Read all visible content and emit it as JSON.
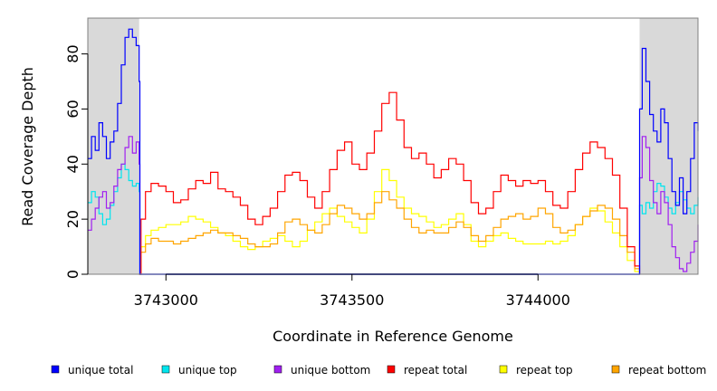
{
  "chart_data": {
    "type": "line",
    "title": "",
    "xlabel": "Coordinate in Reference Genome",
    "ylabel": "Read Coverage Depth",
    "xlim": [
      3742790,
      3744430
    ],
    "ylim": [
      0,
      93
    ],
    "xticks": [
      3743000,
      3743500,
      3744000
    ],
    "yticks": [
      0,
      20,
      40,
      60,
      80
    ],
    "shaded_regions": [
      [
        3742790,
        3742928
      ],
      [
        3744273,
        3744430
      ]
    ],
    "series": [
      {
        "name": "unique total",
        "color": "#0000ff",
        "x": [
          3742790,
          3742800,
          3742810,
          3742820,
          3742830,
          3742840,
          3742850,
          3742860,
          3742870,
          3742880,
          3742890,
          3742900,
          3742910,
          3742920,
          3742928,
          3742930,
          3744270,
          3744273,
          3744280,
          3744290,
          3744300,
          3744310,
          3744320,
          3744330,
          3744340,
          3744350,
          3744360,
          3744370,
          3744380,
          3744390,
          3744400,
          3744410,
          3744420,
          3744430
        ],
        "y": [
          42,
          50,
          45,
          55,
          50,
          42,
          48,
          52,
          62,
          76,
          86,
          89,
          86,
          83,
          70,
          0,
          0,
          60,
          82,
          70,
          58,
          52,
          48,
          60,
          55,
          42,
          30,
          25,
          35,
          22,
          30,
          42,
          55,
          52
        ]
      },
      {
        "name": "unique top",
        "color": "#00e5ee",
        "x": [
          3742790,
          3742800,
          3742810,
          3742820,
          3742830,
          3742840,
          3742850,
          3742860,
          3742870,
          3742880,
          3742890,
          3742900,
          3742910,
          3742920,
          3742928,
          3742930,
          3744270,
          3744273,
          3744280,
          3744290,
          3744300,
          3744310,
          3744320,
          3744330,
          3744340,
          3744350,
          3744360,
          3744370,
          3744380,
          3744390,
          3744400,
          3744410,
          3744420,
          3744430
        ],
        "y": [
          26,
          30,
          28,
          22,
          18,
          20,
          25,
          30,
          35,
          40,
          38,
          34,
          32,
          33,
          30,
          0,
          0,
          25,
          22,
          26,
          24,
          30,
          33,
          32,
          28,
          24,
          22,
          26,
          30,
          27,
          24,
          22,
          25,
          28
        ]
      },
      {
        "name": "unique bottom",
        "color": "#a020f0",
        "x": [
          3742790,
          3742800,
          3742810,
          3742820,
          3742830,
          3742840,
          3742850,
          3742860,
          3742870,
          3742880,
          3742890,
          3742900,
          3742910,
          3742920,
          3742928,
          3742930,
          3744270,
          3744273,
          3744280,
          3744290,
          3744300,
          3744310,
          3744320,
          3744330,
          3744340,
          3744350,
          3744360,
          3744370,
          3744380,
          3744390,
          3744400,
          3744410,
          3744420,
          3744430
        ],
        "y": [
          16,
          20,
          24,
          28,
          30,
          24,
          26,
          32,
          38,
          40,
          46,
          50,
          44,
          48,
          40,
          0,
          0,
          35,
          50,
          46,
          34,
          26,
          22,
          30,
          26,
          18,
          10,
          6,
          2,
          1,
          4,
          8,
          12,
          18
        ]
      },
      {
        "name": "repeat total",
        "color": "#ff0000",
        "x": [
          3742928,
          3742933,
          3742945,
          3742960,
          3742980,
          3743000,
          3743020,
          3743040,
          3743060,
          3743080,
          3743100,
          3743120,
          3743140,
          3743160,
          3743180,
          3743200,
          3743220,
          3743240,
          3743260,
          3743280,
          3743300,
          3743320,
          3743340,
          3743360,
          3743380,
          3743400,
          3743420,
          3743440,
          3743460,
          3743480,
          3743500,
          3743520,
          3743540,
          3743560,
          3743580,
          3743600,
          3743620,
          3743640,
          3743660,
          3743680,
          3743700,
          3743720,
          3743740,
          3743760,
          3743780,
          3743800,
          3743820,
          3743840,
          3743860,
          3743880,
          3743900,
          3743920,
          3743940,
          3743960,
          3743980,
          3744000,
          3744020,
          3744040,
          3744060,
          3744080,
          3744100,
          3744120,
          3744140,
          3744160,
          3744180,
          3744200,
          3744220,
          3744240,
          3744260,
          3744273
        ],
        "y": [
          0,
          20,
          30,
          33,
          32,
          30,
          26,
          27,
          31,
          34,
          33,
          37,
          31,
          30,
          28,
          25,
          20,
          18,
          21,
          24,
          30,
          36,
          37,
          34,
          28,
          24,
          30,
          38,
          45,
          48,
          40,
          38,
          44,
          52,
          62,
          66,
          56,
          46,
          42,
          44,
          40,
          35,
          38,
          42,
          40,
          34,
          26,
          22,
          24,
          30,
          36,
          34,
          32,
          34,
          33,
          34,
          30,
          25,
          24,
          30,
          38,
          44,
          48,
          46,
          42,
          36,
          24,
          10,
          3,
          0
        ]
      },
      {
        "name": "repeat top",
        "color": "#ffff00",
        "x": [
          3742928,
          3742933,
          3742945,
          3742960,
          3742980,
          3743000,
          3743020,
          3743040,
          3743060,
          3743080,
          3743100,
          3743120,
          3743140,
          3743160,
          3743180,
          3743200,
          3743220,
          3743240,
          3743260,
          3743280,
          3743300,
          3743320,
          3743340,
          3743360,
          3743380,
          3743400,
          3743420,
          3743440,
          3743460,
          3743480,
          3743500,
          3743520,
          3743540,
          3743560,
          3743580,
          3743600,
          3743620,
          3743640,
          3743660,
          3743680,
          3743700,
          3743720,
          3743740,
          3743760,
          3743780,
          3743800,
          3743820,
          3743840,
          3743860,
          3743880,
          3743900,
          3743920,
          3743940,
          3743960,
          3743980,
          3744000,
          3744020,
          3744040,
          3744060,
          3744080,
          3744100,
          3744120,
          3744140,
          3744160,
          3744180,
          3744200,
          3744220,
          3744240,
          3744260,
          3744273
        ],
        "y": [
          0,
          10,
          14,
          16,
          17,
          18,
          18,
          19,
          21,
          20,
          19,
          17,
          15,
          14,
          12,
          10,
          9,
          10,
          12,
          13,
          14,
          12,
          10,
          12,
          16,
          19,
          22,
          24,
          21,
          19,
          17,
          15,
          20,
          30,
          38,
          34,
          28,
          24,
          22,
          21,
          19,
          17,
          18,
          20,
          22,
          18,
          12,
          10,
          12,
          14,
          15,
          13,
          12,
          11,
          11,
          11,
          12,
          11,
          12,
          14,
          18,
          21,
          24,
          23,
          19,
          15,
          10,
          5,
          1,
          0
        ]
      },
      {
        "name": "repeat bottom",
        "color": "#ffa500",
        "x": [
          3742928,
          3742933,
          3742945,
          3742960,
          3742980,
          3743000,
          3743020,
          3743040,
          3743060,
          3743080,
          3743100,
          3743120,
          3743140,
          3743160,
          3743180,
          3743200,
          3743220,
          3743240,
          3743260,
          3743280,
          3743300,
          3743320,
          3743340,
          3743360,
          3743380,
          3743400,
          3743420,
          3743440,
          3743460,
          3743480,
          3743500,
          3743520,
          3743540,
          3743560,
          3743580,
          3743600,
          3743620,
          3743640,
          3743660,
          3743680,
          3743700,
          3743720,
          3743740,
          3743760,
          3743780,
          3743800,
          3743820,
          3743840,
          3743860,
          3743880,
          3743900,
          3743920,
          3743940,
          3743960,
          3743980,
          3744000,
          3744020,
          3744040,
          3744060,
          3744080,
          3744100,
          3744120,
          3744140,
          3744160,
          3744180,
          3744200,
          3744220,
          3744240,
          3744260,
          3744273
        ],
        "y": [
          0,
          8,
          11,
          13,
          12,
          12,
          11,
          12,
          13,
          14,
          15,
          16,
          15,
          15,
          14,
          13,
          11,
          10,
          10,
          11,
          15,
          19,
          20,
          18,
          16,
          15,
          18,
          22,
          25,
          24,
          22,
          20,
          22,
          26,
          30,
          27,
          24,
          20,
          17,
          15,
          16,
          15,
          15,
          17,
          19,
          17,
          14,
          12,
          14,
          17,
          20,
          21,
          22,
          20,
          21,
          24,
          22,
          17,
          15,
          16,
          18,
          21,
          23,
          25,
          24,
          20,
          14,
          8,
          2,
          0
        ]
      }
    ],
    "legend": {
      "placement": "bottom",
      "entries": [
        "unique total",
        "unique top",
        "unique bottom",
        "repeat total",
        "repeat top",
        "repeat bottom"
      ]
    }
  }
}
